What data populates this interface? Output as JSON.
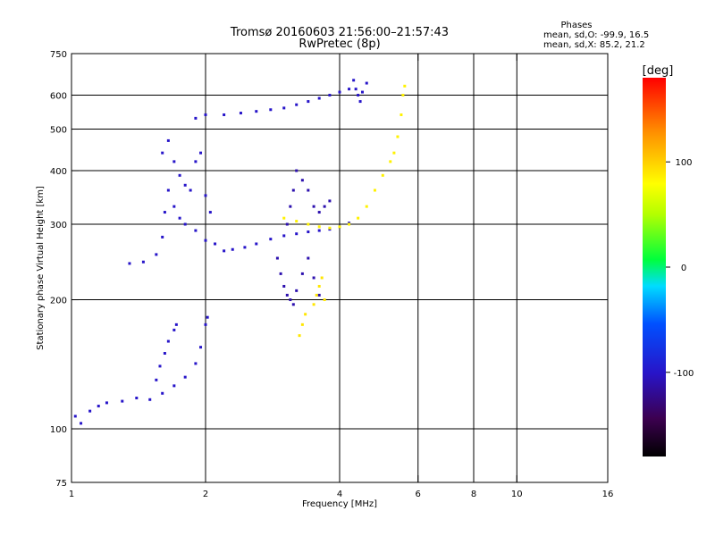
{
  "chart_data": {
    "type": "scatter",
    "title": "Tromsø 20160603 21:56:00–21:57:43",
    "subtitle": "RwPretec (8p)",
    "xlabel": "Frequency [MHz]",
    "ylabel": "Stationary phase Virtual Height [km]",
    "x_scale": "log",
    "y_scale": "log",
    "xlim": [
      1,
      16
    ],
    "ylim": [
      75,
      750
    ],
    "x_ticks": [
      {
        "value": 1,
        "label": "1"
      },
      {
        "value": 2,
        "label": "2"
      },
      {
        "value": 4,
        "label": "4"
      },
      {
        "value": 6,
        "label": "6"
      },
      {
        "value": 8,
        "label": "8"
      },
      {
        "value": 10,
        "label": "10"
      },
      {
        "value": 16,
        "label": "16"
      }
    ],
    "y_ticks": [
      {
        "value": 75,
        "label": "75"
      },
      {
        "value": 100,
        "label": "100"
      },
      {
        "value": 200,
        "label": "200"
      },
      {
        "value": 300,
        "label": "300"
      },
      {
        "value": 400,
        "label": "400"
      },
      {
        "value": 500,
        "label": "500"
      },
      {
        "value": 600,
        "label": "600"
      },
      {
        "value": 750,
        "label": "750"
      }
    ],
    "x_gridlines": [
      2,
      4,
      6,
      8,
      10
    ],
    "y_gridlines": [
      100,
      200,
      300,
      400,
      500,
      600
    ],
    "grid": true,
    "stats": {
      "heading": "Phases",
      "line_o": "mean, sd,O: -99.9, 16.5",
      "line_x": "mean, sd,X:  85.2, 21.2"
    },
    "colorbar": {
      "label": "[deg]",
      "range": [
        -180,
        180
      ],
      "tick_values": [
        100,
        0,
        -100
      ],
      "tick_labels": [
        "100",
        "0",
        "-100"
      ]
    },
    "color_key": [
      "#000000",
      "#3c0050",
      "#2814c8",
      "#0050ff",
      "#00dcff",
      "#00ff3c",
      "#b4ff00",
      "#ffff00",
      "#ff8c00",
      "#ff0000"
    ],
    "traces": [
      {
        "phase": -100,
        "points": [
          [
            1.02,
            107
          ],
          [
            1.05,
            103
          ],
          [
            1.1,
            110
          ],
          [
            1.15,
            113
          ],
          [
            1.2,
            115
          ],
          [
            1.3,
            116
          ],
          [
            1.4,
            118
          ],
          [
            1.5,
            117
          ],
          [
            1.6,
            121
          ],
          [
            1.7,
            126
          ],
          [
            1.8,
            132
          ],
          [
            1.9,
            142
          ],
          [
            1.95,
            155
          ],
          [
            2.0,
            175
          ],
          [
            2.02,
            182
          ]
        ]
      },
      {
        "phase": -100,
        "points": [
          [
            1.55,
            130
          ],
          [
            1.58,
            140
          ],
          [
            1.62,
            150
          ],
          [
            1.65,
            160
          ],
          [
            1.7,
            170
          ],
          [
            1.72,
            175
          ]
        ]
      },
      {
        "phase": -100,
        "points": [
          [
            1.35,
            243
          ],
          [
            1.45,
            245
          ],
          [
            1.55,
            255
          ],
          [
            1.6,
            280
          ],
          [
            1.62,
            320
          ],
          [
            1.65,
            360
          ],
          [
            1.7,
            330
          ],
          [
            1.75,
            310
          ],
          [
            1.8,
            300
          ],
          [
            1.9,
            290
          ],
          [
            2.0,
            275
          ],
          [
            2.1,
            270
          ],
          [
            2.2,
            260
          ],
          [
            2.3,
            262
          ],
          [
            2.45,
            265
          ],
          [
            2.6,
            270
          ],
          [
            2.8,
            277
          ],
          [
            3.0,
            282
          ],
          [
            3.2,
            285
          ],
          [
            3.4,
            288
          ],
          [
            3.6,
            290
          ],
          [
            3.8,
            292
          ],
          [
            4.0,
            296
          ],
          [
            4.2,
            302
          ]
        ]
      },
      {
        "phase": -100,
        "points": [
          [
            1.6,
            440
          ],
          [
            1.65,
            470
          ],
          [
            1.7,
            420
          ],
          [
            1.75,
            390
          ],
          [
            1.8,
            370
          ],
          [
            1.85,
            360
          ],
          [
            1.9,
            420
          ],
          [
            1.95,
            440
          ],
          [
            2.0,
            350
          ],
          [
            2.05,
            320
          ]
        ]
      },
      {
        "phase": -100,
        "points": [
          [
            1.9,
            530
          ],
          [
            2.0,
            540
          ],
          [
            2.2,
            540
          ],
          [
            2.4,
            545
          ],
          [
            2.6,
            550
          ],
          [
            2.8,
            555
          ],
          [
            3.0,
            560
          ],
          [
            3.2,
            570
          ],
          [
            3.4,
            580
          ],
          [
            3.6,
            590
          ],
          [
            3.8,
            600
          ],
          [
            4.0,
            610
          ],
          [
            4.2,
            620
          ]
        ]
      },
      {
        "phase": -110,
        "points": [
          [
            2.9,
            250
          ],
          [
            2.95,
            230
          ],
          [
            3.0,
            215
          ],
          [
            3.05,
            205
          ],
          [
            3.1,
            200
          ],
          [
            3.15,
            195
          ],
          [
            3.2,
            210
          ],
          [
            3.3,
            230
          ],
          [
            3.4,
            250
          ],
          [
            3.5,
            225
          ],
          [
            3.6,
            205
          ]
        ]
      },
      {
        "phase": -110,
        "points": [
          [
            3.05,
            300
          ],
          [
            3.1,
            330
          ],
          [
            3.15,
            360
          ],
          [
            3.2,
            400
          ],
          [
            3.3,
            380
          ],
          [
            3.4,
            360
          ],
          [
            3.5,
            330
          ],
          [
            3.6,
            320
          ],
          [
            3.7,
            330
          ],
          [
            3.8,
            340
          ]
        ]
      },
      {
        "phase": 85,
        "points": [
          [
            3.0,
            310
          ],
          [
            3.2,
            305
          ],
          [
            3.4,
            300
          ],
          [
            3.6,
            296
          ],
          [
            3.8,
            294
          ],
          [
            4.0,
            296
          ],
          [
            4.2,
            300
          ],
          [
            4.4,
            310
          ],
          [
            4.6,
            330
          ],
          [
            4.8,
            360
          ],
          [
            5.0,
            390
          ],
          [
            5.2,
            420
          ],
          [
            5.3,
            440
          ],
          [
            5.4,
            480
          ],
          [
            5.5,
            540
          ],
          [
            5.55,
            600
          ],
          [
            5.6,
            630
          ]
        ]
      },
      {
        "phase": 90,
        "points": [
          [
            3.5,
            195
          ],
          [
            3.55,
            205
          ],
          [
            3.6,
            215
          ],
          [
            3.65,
            225
          ],
          [
            3.7,
            200
          ],
          [
            3.3,
            175
          ],
          [
            3.25,
            165
          ],
          [
            3.35,
            185
          ]
        ]
      },
      {
        "phase": -100,
        "points": [
          [
            4.3,
            650
          ],
          [
            4.35,
            620
          ],
          [
            4.4,
            600
          ],
          [
            4.45,
            580
          ],
          [
            4.5,
            610
          ],
          [
            4.6,
            640
          ]
        ]
      }
    ]
  }
}
